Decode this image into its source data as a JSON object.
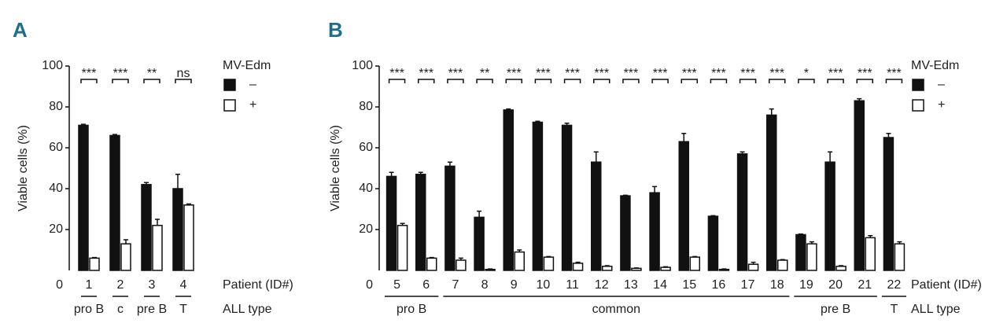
{
  "chart_data": [
    {
      "type": "bar",
      "panel": "A",
      "ylabel": "Viable cells (%)",
      "legend_title": "MV-Edm",
      "categories": [
        "1",
        "2",
        "3",
        "4"
      ],
      "series": [
        {
          "name": "–",
          "color": "#111111",
          "values": [
            71,
            66,
            42,
            40
          ],
          "errors": [
            0.5,
            0.5,
            1,
            7
          ]
        },
        {
          "name": "+",
          "color": "#ffffff",
          "values": [
            6,
            13,
            22,
            32
          ],
          "errors": [
            0.3,
            2,
            3,
            0.5
          ]
        }
      ],
      "significance": [
        "***",
        "***",
        "**",
        "ns"
      ],
      "all_types": [
        "pro B",
        "c",
        "pre B",
        "T"
      ],
      "xlabel": "Patient (ID#)",
      "type_label": "ALL type",
      "ylim": [
        0,
        100
      ],
      "yticks": [
        0,
        20,
        40,
        60,
        80,
        100
      ]
    },
    {
      "type": "bar",
      "panel": "B",
      "ylabel": "Viable cells (%)",
      "legend_title": "MV-Edm",
      "categories": [
        "5",
        "6",
        "7",
        "8",
        "9",
        "10",
        "11",
        "12",
        "13",
        "14",
        "15",
        "16",
        "17",
        "18",
        "19",
        "20",
        "21",
        "22"
      ],
      "series": [
        {
          "name": "–",
          "color": "#111111",
          "values": [
            46,
            47,
            51,
            26,
            78.5,
            72.5,
            71,
            53,
            36.5,
            38,
            63,
            26.5,
            57,
            76,
            17.5,
            53,
            83,
            65
          ],
          "errors": [
            2,
            1,
            2,
            3,
            0.5,
            0.5,
            1,
            5,
            0.3,
            3,
            4,
            0.3,
            1,
            3,
            0.3,
            5,
            1,
            2
          ]
        },
        {
          "name": "+",
          "color": "#ffffff",
          "values": [
            22,
            6,
            5,
            0.5,
            9,
            6.5,
            3.5,
            2,
            1,
            1.5,
            6.5,
            0.5,
            3,
            5,
            13,
            2,
            16,
            13
          ],
          "errors": [
            1,
            0.3,
            1,
            0.2,
            1,
            0.3,
            0.5,
            0.3,
            0.2,
            0.3,
            0.3,
            0.2,
            1,
            0.3,
            1,
            0.3,
            1,
            1
          ]
        }
      ],
      "significance": [
        "***",
        "***",
        "***",
        "**",
        "***",
        "***",
        "***",
        "***",
        "***",
        "***",
        "***",
        "***",
        "***",
        "***",
        "*",
        "***",
        "***",
        "***"
      ],
      "all_type_groups": [
        {
          "label": "pro B",
          "span": 2
        },
        {
          "label": "common",
          "span": 12
        },
        {
          "label": "pre B",
          "span": 3
        },
        {
          "label": "T",
          "span": 1
        }
      ],
      "xlabel": "Patient (ID#)",
      "type_label": "ALL type",
      "ylim": [
        0,
        100
      ],
      "yticks": [
        0,
        20,
        40,
        60,
        80,
        100
      ]
    }
  ]
}
